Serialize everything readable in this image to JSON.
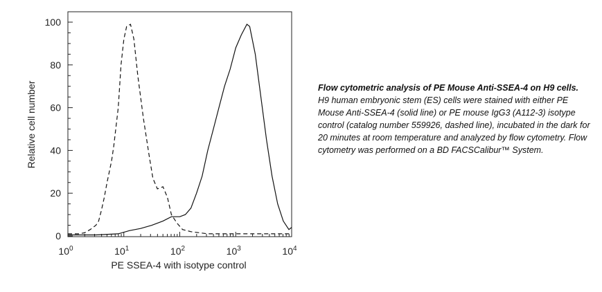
{
  "chart_data": {
    "type": "line",
    "title": "",
    "xlabel": "PE SSEA-4 with isotype control",
    "ylabel": "Relative cell number",
    "xscale": "log",
    "xlim": [
      1,
      10000
    ],
    "ylim": [
      0,
      105
    ],
    "xticks": [
      {
        "base": "10",
        "exp": "0"
      },
      {
        "base": "10",
        "exp": "1"
      },
      {
        "base": "10",
        "exp": "2"
      },
      {
        "base": "10",
        "exp": "3"
      },
      {
        "base": "10",
        "exp": "4"
      }
    ],
    "yticks": [
      "0",
      "20",
      "40",
      "60",
      "80",
      "100"
    ],
    "series": [
      {
        "name": "PE Mouse IgG3 isotype control",
        "style": "dashed",
        "log10x": [
          0,
          0.2,
          0.3,
          0.4,
          0.5,
          0.55,
          0.6,
          0.65,
          0.7,
          0.78,
          0.82,
          0.9,
          0.95,
          1.0,
          1.05,
          1.12,
          1.18,
          1.25,
          1.35,
          1.45,
          1.52,
          1.6,
          1.7,
          1.78,
          1.85,
          1.95,
          2.05,
          2.2,
          2.5,
          3.0,
          4.0
        ],
        "y": [
          1,
          1,
          1.5,
          3,
          5,
          7,
          12,
          18,
          25,
          35,
          42,
          60,
          80,
          92,
          98,
          99,
          92,
          75,
          55,
          38,
          27,
          22,
          23,
          18,
          10,
          6,
          3,
          2,
          1,
          1,
          1
        ]
      },
      {
        "name": "PE Mouse Anti-SSEA-4",
        "style": "solid",
        "log10x": [
          0,
          0.5,
          0.9,
          1.1,
          1.3,
          1.5,
          1.7,
          1.85,
          2.0,
          2.1,
          2.2,
          2.3,
          2.4,
          2.5,
          2.6,
          2.7,
          2.8,
          2.9,
          3.0,
          3.1,
          3.2,
          3.25,
          3.35,
          3.45,
          3.55,
          3.65,
          3.75,
          3.85,
          3.95,
          4.0
        ],
        "y": [
          0.5,
          0.5,
          1,
          2.5,
          3.5,
          5,
          7,
          9,
          9,
          10,
          13,
          20,
          28,
          40,
          50,
          60,
          70,
          78,
          88,
          94,
          99,
          98,
          85,
          65,
          45,
          28,
          15,
          7,
          3,
          4
        ]
      }
    ]
  },
  "caption": {
    "title": "Flow cytometric analysis of PE Mouse Anti-SSEA-4 on H9 cells.",
    "body": "H9 human embryonic stem (ES) cells were stained with either PE Mouse Anti-SSEA-4 (solid line) or PE mouse IgG3 (A112-3) isotype control (catalog number 559926, dashed line), incubated in the dark for 20 minutes at room temperature and analyzed by flow cytometry. Flow cytometry was performed on a BD FACSCalibur™ System."
  }
}
